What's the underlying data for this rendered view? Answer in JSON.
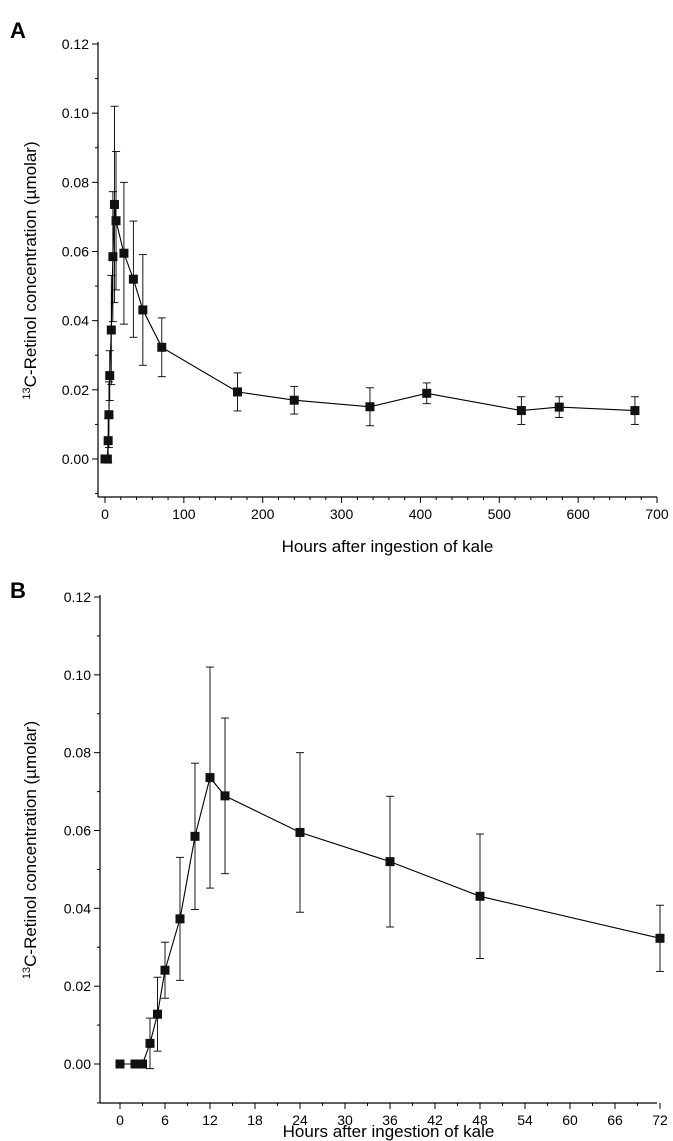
{
  "chart_data": [
    {
      "panel": "A",
      "type": "line",
      "xlabel": "Hours after ingestion of kale",
      "ylabel_sup": "13",
      "ylabel_main": "C-Retinol concentration (µmolar)",
      "xlim": [
        0,
        700
      ],
      "ylim": [
        0,
        0.12
      ],
      "xticks": [
        "0",
        "100",
        "200",
        "300",
        "400",
        "500",
        "600",
        "700"
      ],
      "yticks": [
        "0.00",
        "0.02",
        "0.04",
        "0.06",
        "0.08",
        "0.10",
        "0.12"
      ],
      "grid": false,
      "markers": "filled-square",
      "error_bars": true,
      "points": [
        {
          "x": 0,
          "y": 0.0,
          "err": 0.0
        },
        {
          "x": 2,
          "y": 0.0,
          "err": 0.0
        },
        {
          "x": 3,
          "y": 0.0,
          "err": 0.0
        },
        {
          "x": 4,
          "y": 0.0053,
          "err": 0.0065
        },
        {
          "x": 5,
          "y": 0.0128,
          "err": 0.0095
        },
        {
          "x": 6,
          "y": 0.0241,
          "err": 0.0072
        },
        {
          "x": 8,
          "y": 0.0373,
          "err": 0.0158
        },
        {
          "x": 10,
          "y": 0.0585,
          "err": 0.0188
        },
        {
          "x": 12,
          "y": 0.0736,
          "err": 0.0284
        },
        {
          "x": 14,
          "y": 0.0689,
          "err": 0.02
        },
        {
          "x": 24,
          "y": 0.0595,
          "err": 0.0205
        },
        {
          "x": 36,
          "y": 0.052,
          "err": 0.0168
        },
        {
          "x": 48,
          "y": 0.0431,
          "err": 0.016
        },
        {
          "x": 72,
          "y": 0.0323,
          "err": 0.0085
        },
        {
          "x": 168,
          "y": 0.0194,
          "err": 0.0055
        },
        {
          "x": 240,
          "y": 0.017,
          "err": 0.004
        },
        {
          "x": 336,
          "y": 0.0151,
          "err": 0.0055
        },
        {
          "x": 408,
          "y": 0.019,
          "err": 0.003
        },
        {
          "x": 528,
          "y": 0.014,
          "err": 0.004
        },
        {
          "x": 576,
          "y": 0.015,
          "err": 0.003
        },
        {
          "x": 672,
          "y": 0.014,
          "err": 0.004
        }
      ]
    },
    {
      "panel": "B",
      "type": "line",
      "xlabel": "Hours after ingestion of kale",
      "ylabel_sup": "13",
      "ylabel_main": "C-Retinol concentration (µmolar)",
      "xlim": [
        0,
        72
      ],
      "ylim": [
        0,
        0.12
      ],
      "xticks": [
        "0",
        "6",
        "12",
        "18",
        "24",
        "30",
        "36",
        "42",
        "48",
        "54",
        "60",
        "66",
        "72"
      ],
      "yticks": [
        "0.00",
        "0.02",
        "0.04",
        "0.06",
        "0.08",
        "0.10",
        "0.12"
      ],
      "grid": false,
      "markers": "filled-square",
      "error_bars": true,
      "points": [
        {
          "x": 0,
          "y": 0.0,
          "err": 0.0
        },
        {
          "x": 2,
          "y": 0.0,
          "err": 0.0
        },
        {
          "x": 2.5,
          "y": 0.0,
          "err": 0.0
        },
        {
          "x": 3,
          "y": 0.0,
          "err": 0.0
        },
        {
          "x": 4,
          "y": 0.0053,
          "err": 0.0065
        },
        {
          "x": 5,
          "y": 0.0128,
          "err": 0.0095
        },
        {
          "x": 6,
          "y": 0.0241,
          "err": 0.0072
        },
        {
          "x": 8,
          "y": 0.0373,
          "err": 0.0158
        },
        {
          "x": 10,
          "y": 0.0585,
          "err": 0.0188
        },
        {
          "x": 12,
          "y": 0.0736,
          "err": 0.0284
        },
        {
          "x": 14,
          "y": 0.0689,
          "err": 0.02
        },
        {
          "x": 24,
          "y": 0.0595,
          "err": 0.0205
        },
        {
          "x": 36,
          "y": 0.052,
          "err": 0.0168
        },
        {
          "x": 48,
          "y": 0.0431,
          "err": 0.016
        },
        {
          "x": 72,
          "y": 0.0323,
          "err": 0.0085
        }
      ]
    }
  ]
}
